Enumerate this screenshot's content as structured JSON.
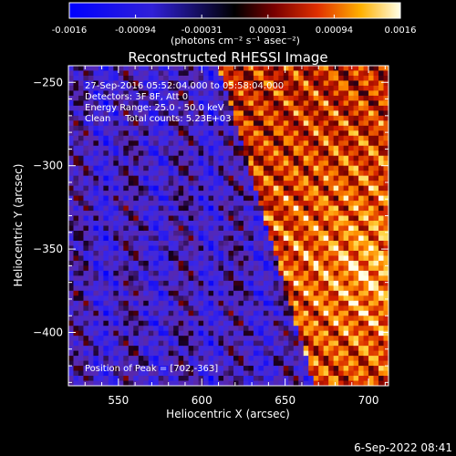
{
  "colorbar": {
    "ticks": [
      "-0.0016",
      "-0.00094",
      "-0.00031",
      "0.00031",
      "0.00094",
      "0.0016"
    ],
    "unit_label": "(photons cm⁻² s⁻¹ asec⁻²)"
  },
  "chart_data": {
    "type": "heatmap",
    "title": "Reconstructed RHESSI Image",
    "xlabel": "Heliocentric X (arcsec)",
    "ylabel": "Heliocentric Y (arcsec)",
    "xlim": [
      520,
      712
    ],
    "ylim": [
      -432,
      -240
    ],
    "xticks": [
      550,
      600,
      650,
      700
    ],
    "yticks": [
      -250,
      -300,
      -350,
      -400
    ],
    "zlim": [
      -0.0016,
      0.0016
    ],
    "peak": [
      702,
      -363
    ],
    "annotations": [
      "27-Sep-2016 05:52:04.000 to 05:58:04.000",
      "Detectors: 3F 8F, Att 0",
      "Energy Range: 25.0 - 50.0 keV",
      "Clean     Total counts: 5.23E+03"
    ],
    "peak_label": "Position of Peak = [702,-363]"
  },
  "footer": {
    "timestamp": "6-Sep-2022 08:41"
  }
}
